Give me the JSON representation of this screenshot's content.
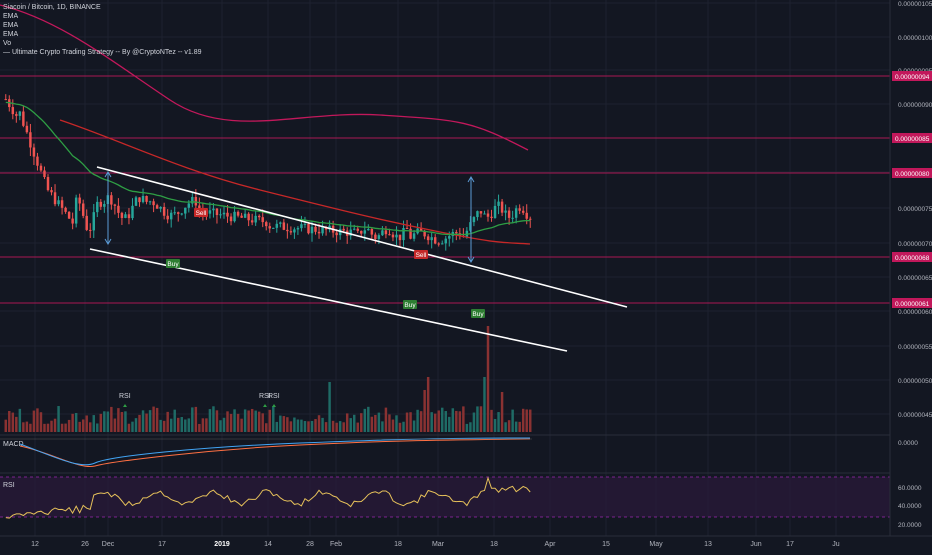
{
  "header": {
    "symbol_line": "Siacoin / Bitcoin, 1D, BINANCE",
    "ind1": "EMA",
    "ind2": "EMA",
    "ind3": "EMA",
    "ind4": "Vo",
    "strategy": "— Ultimate Crypto Trading Strategy -- By @CryptoNTez -- v1.89"
  },
  "price_axis": {
    "labels": [
      "0.00000105",
      "0.00000100",
      "0.00000095",
      "0.00000090",
      "0.00000085",
      "0.00000080",
      "0.00000075",
      "0.00000070",
      "0.00000065",
      "0.00000060",
      "0.00000055",
      "0.00000050",
      "0.00000045"
    ],
    "highlighted": [
      "0.00000094",
      "0.00000085",
      "0.00000080",
      "0.00000068",
      "0.00000061"
    ]
  },
  "macd_panel": {
    "title": "MACD",
    "axis_label": "0.0000"
  },
  "rsi_panel": {
    "title": "RSI",
    "axis_labels": [
      "60.0000",
      "40.0000",
      "20.0000"
    ]
  },
  "time_axis": {
    "labels": [
      "12",
      "26",
      "Dec",
      "17",
      "2019",
      "14",
      "28",
      "Feb",
      "18",
      "Mar",
      "18",
      "Apr",
      "15",
      "May",
      "13",
      "Jun",
      "17",
      "Ju"
    ]
  },
  "signals": {
    "buy": "Buy",
    "sell": "Sell",
    "rsi": "RSI"
  },
  "chart_data": {
    "type": "candlestick",
    "title": "Siacoin / Bitcoin, 1D, BINANCE",
    "ylim": [
      4.2e-07,
      1.065e-06
    ],
    "x_range": [
      "2018-11-02",
      "2019-07-02"
    ],
    "horizontal_levels": [
      9.4e-07,
      8.5e-07,
      8e-07,
      6.8e-07,
      6.1e-07
    ],
    "series": [
      {
        "name": "EMA (red)",
        "color": "#c62828"
      },
      {
        "name": "EMA (magenta)",
        "color": "#c2185b"
      },
      {
        "name": "EMA (green)",
        "color": "#2e9e44"
      },
      {
        "name": "Volume"
      },
      {
        "name": "MACD"
      },
      {
        "name": "RSI",
        "range": [
          10,
          75
        ],
        "bands": [
          30,
          70
        ]
      }
    ],
    "signals": [
      {
        "type": "Sell",
        "date": "2018-12-18",
        "price": 7.4e-07
      },
      {
        "type": "Buy",
        "date": "2018-12-15",
        "price": 6.4e-07
      },
      {
        "type": "Buy",
        "date": "2019-02-26",
        "price": 6.1e-07
      },
      {
        "type": "Sell",
        "date": "2019-03-01",
        "price": 6.8e-07
      },
      {
        "type": "Buy",
        "date": "2019-03-11",
        "price": 6e-07
      }
    ],
    "colors": {
      "up": "#26a69a",
      "down": "#ef5350",
      "background": "#131722",
      "level": "#c2185b"
    }
  }
}
